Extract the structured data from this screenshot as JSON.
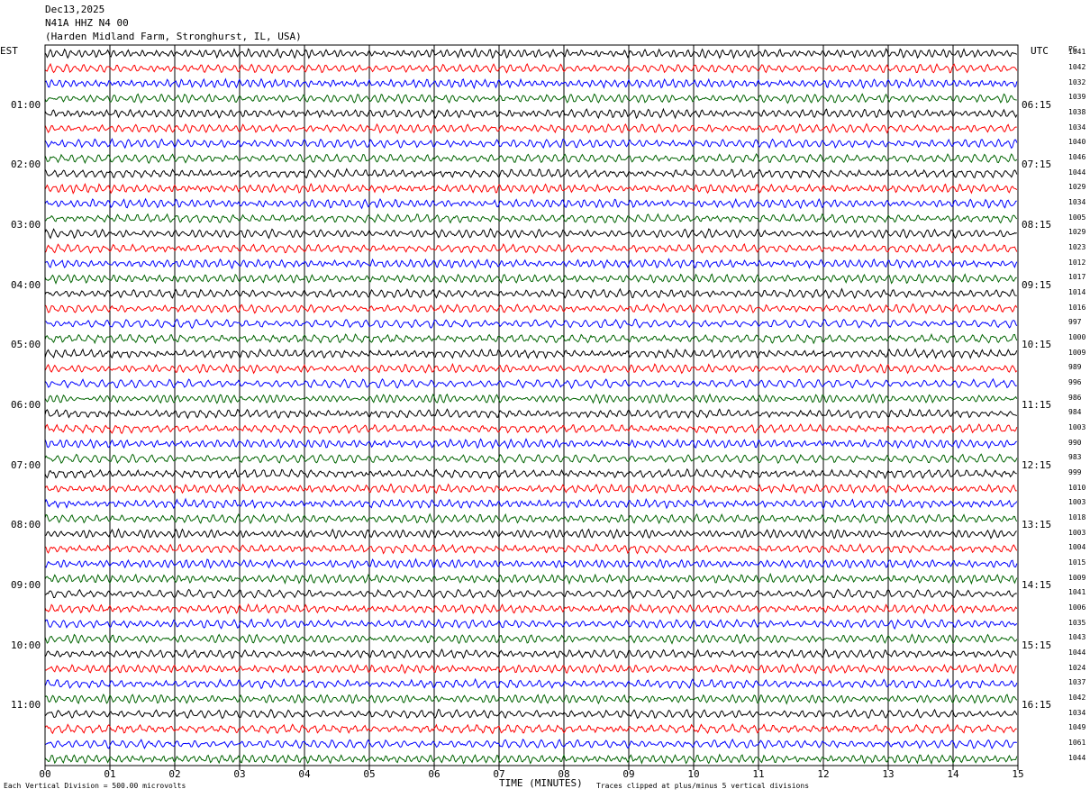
{
  "header": {
    "date": "Dec13,2025",
    "station": "N41A HHZ N4 00",
    "location": "(Harden Midland Farm, Stronghurst, IL, USA)"
  },
  "left_axis_title": "EST",
  "right_axis_title": "UTC",
  "pg_title": "PG",
  "footer": {
    "scale_note": "Each Vertical Division =  500.00 microvolts",
    "xlabel": "TIME (MINUTES)",
    "clip_note": "Traces clipped at plus/minus 5 vertical divisions"
  },
  "colors": {
    "trace_cycle": [
      "#000000",
      "#ff0000",
      "#0000ff",
      "#006400"
    ],
    "grid": "#000000",
    "background": "#ffffff"
  },
  "chart_data": {
    "type": "line",
    "title": "",
    "xlabel": "TIME (MINUTES)",
    "xlim": [
      0,
      15
    ],
    "x_ticks": [
      "00",
      "01",
      "02",
      "03",
      "04",
      "05",
      "06",
      "07",
      "08",
      "09",
      "10",
      "11",
      "12",
      "13",
      "14",
      "15"
    ],
    "row_minutes": 15,
    "hour_labels_est": [
      "01:00",
      "02:00",
      "03:00",
      "04:00",
      "05:00",
      "06:00",
      "07:00",
      "08:00",
      "09:00",
      "10:00",
      "11:00"
    ],
    "hour_labels_utc": [
      "06:15",
      "07:15",
      "08:15",
      "09:15",
      "10:15",
      "11:15",
      "12:15",
      "13:15",
      "14:15",
      "15:15",
      "16:15"
    ],
    "pg_values": [
      "1041",
      "1042",
      "1032",
      "1039",
      "1038",
      "1034",
      "1040",
      "1046",
      "1044",
      "1029",
      "1034",
      "1005",
      "1029",
      "1023",
      "1012",
      "1017",
      "1014",
      "1016",
      "997",
      "1000",
      "1009",
      "989",
      "996",
      "986",
      "984",
      "1003",
      "990",
      "983",
      "999",
      "1010",
      "1003",
      "1018",
      "1003",
      "1004",
      "1015",
      "1009",
      "1041",
      "1006",
      "1035",
      "1043",
      "1044",
      "1024",
      "1037",
      "1042",
      "1034",
      "1049",
      "1061",
      "1044"
    ]
  }
}
